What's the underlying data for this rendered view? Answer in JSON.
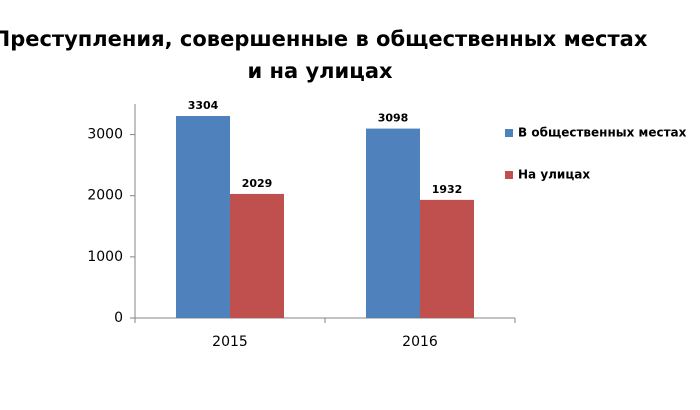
{
  "chart_data": {
    "type": "bar",
    "title": [
      "Преступления, совершенные в общественных местах",
      "и на улицах"
    ],
    "categories": [
      "2015",
      "2016"
    ],
    "series": [
      {
        "name": "В общественных местах",
        "color": "#4f81bd",
        "values": [
          3304,
          3098
        ]
      },
      {
        "name": "На улицах",
        "color": "#c0504d",
        "values": [
          2029,
          1932
        ]
      }
    ],
    "ylim": [
      0,
      3500
    ],
    "yticks": [
      0,
      1000,
      2000,
      3000
    ],
    "grid": false,
    "legend": "right"
  }
}
